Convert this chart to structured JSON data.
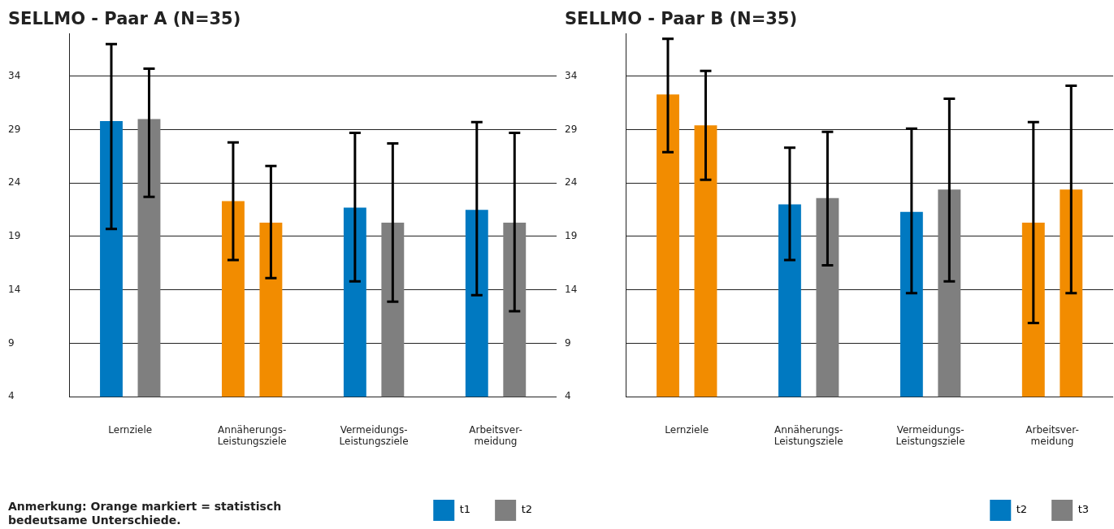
{
  "chart_data": [
    {
      "type": "bar",
      "title": "SELLMO - Paar A (N=35)",
      "categories": [
        "Lernziele",
        "Annäherungs-\nLeistungsziele",
        "Vermeidungs-\nLeistungsziele",
        "Arbeitsver-\nmeidung"
      ],
      "series": [
        {
          "name": "t1",
          "color": "#0079c1",
          "colors": [
            "#0079c1",
            "#f28c00",
            "#0079c1",
            "#0079c1"
          ],
          "values": [
            29.8,
            22.3,
            21.7,
            21.5
          ],
          "errors": [
            [
              19.7,
              37.0
            ],
            [
              16.8,
              27.8
            ],
            [
              14.8,
              28.7
            ],
            [
              13.5,
              29.7
            ]
          ]
        },
        {
          "name": "t2",
          "color": "#7f7f7f",
          "colors": [
            "#7f7f7f",
            "#f28c00",
            "#7f7f7f",
            "#7f7f7f"
          ],
          "values": [
            30.0,
            20.3,
            20.3,
            20.3
          ],
          "errors": [
            [
              22.7,
              34.7
            ],
            [
              15.1,
              25.6
            ],
            [
              12.9,
              27.7
            ],
            [
              12.0,
              28.7
            ]
          ]
        }
      ],
      "ylim": [
        4,
        38
      ],
      "yticks": [
        4,
        9,
        14,
        19,
        24,
        29,
        34
      ],
      "grid": "y",
      "legend": "bottom right",
      "annotations": [
        "Anmerkung: Orange markiert = statistisch bedeutsame Unterschiede."
      ]
    },
    {
      "type": "bar",
      "title": "SELLMO - Paar B (N=35)",
      "categories": [
        "Lernziele",
        "Annäherungs-\nLeistungsziele",
        "Vermeidungs-\nLeistungsziele",
        "Arbeitsver-\nmeidung"
      ],
      "series": [
        {
          "name": "t2",
          "color": "#0079c1",
          "colors": [
            "#f28c00",
            "#0079c1",
            "#0079c1",
            "#f28c00"
          ],
          "values": [
            32.3,
            22.0,
            21.3,
            20.3
          ],
          "errors": [
            [
              26.9,
              37.5
            ],
            [
              16.8,
              27.3
            ],
            [
              13.7,
              29.1
            ],
            [
              10.9,
              29.7
            ]
          ]
        },
        {
          "name": "t3",
          "color": "#7f7f7f",
          "colors": [
            "#f28c00",
            "#7f7f7f",
            "#7f7f7f",
            "#f28c00"
          ],
          "values": [
            29.4,
            22.6,
            23.4,
            23.4
          ],
          "errors": [
            [
              24.3,
              34.5
            ],
            [
              16.3,
              28.8
            ],
            [
              14.8,
              31.9
            ],
            [
              13.7,
              33.1
            ]
          ]
        }
      ],
      "ylim": [
        4,
        38
      ],
      "yticks": [
        4,
        9,
        14,
        19,
        24,
        29,
        34
      ],
      "grid": "y",
      "legend": "bottom right"
    }
  ]
}
